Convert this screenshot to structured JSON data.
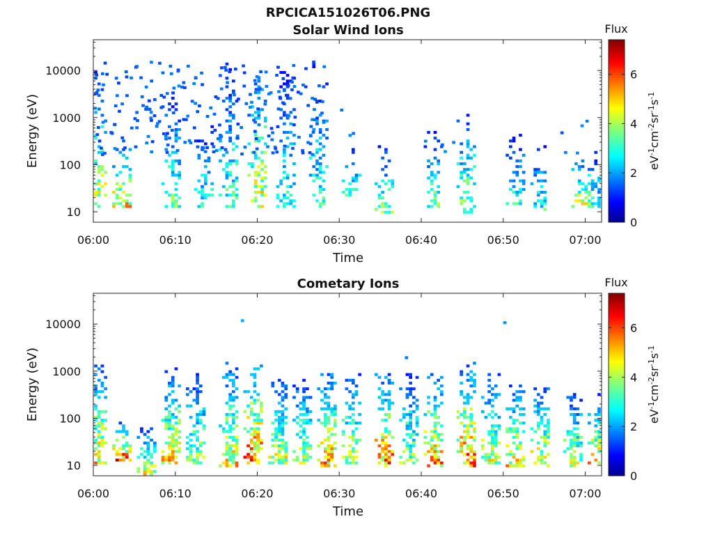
{
  "figure": {
    "title": "RPCICA151026T06.PNG"
  },
  "chart_data": [
    {
      "type": "heatmap",
      "title": "Solar Wind Ions",
      "xlabel": "Time",
      "ylabel": "Energy (eV)",
      "y_scale": "log",
      "ylim": [
        6,
        45000
      ],
      "xlim": [
        "06:00",
        "07:02"
      ],
      "x_ticks": [
        "06:00",
        "06:10",
        "06:20",
        "06:30",
        "06:40",
        "06:50",
        "07:00"
      ],
      "y_ticks": [
        "10",
        "100",
        "1000",
        "10000"
      ],
      "colorbar": {
        "title": "Flux",
        "label": "eV-1cm-2sr-1s-1",
        "range": [
          0,
          7.4
        ],
        "ticks": [
          "0",
          "2",
          "4",
          "6"
        ],
        "colormap": "jet"
      },
      "grid": false,
      "description_segments": [
        {
          "from": "06:00",
          "to": "06:28",
          "energy_range_eV": [
            6,
            15000
          ],
          "typical_flux": [
            2,
            4
          ],
          "note": "scattered high energy pixels"
        },
        {
          "from": "06:28",
          "to": "07:02",
          "energy_range_eV": [
            6,
            1300
          ],
          "typical_flux": [
            2,
            4.5
          ],
          "note": "sparse vertical bursts"
        }
      ],
      "bursts": [
        {
          "t": 0.5,
          "emin": 12,
          "emax": 9000,
          "peak": 5.0
        },
        {
          "t": 3.5,
          "emin": 12,
          "emax": 300,
          "peak": 5.5
        },
        {
          "t": 9.5,
          "emin": 12,
          "emax": 3000,
          "peak": 4.0
        },
        {
          "t": 13.5,
          "emin": 12,
          "emax": 600,
          "peak": 3.5
        },
        {
          "t": 16.5,
          "emin": 12,
          "emax": 14000,
          "peak": 3.8
        },
        {
          "t": 20.0,
          "emin": 12,
          "emax": 12000,
          "peak": 5.2
        },
        {
          "t": 23.5,
          "emin": 12,
          "emax": 9000,
          "peak": 3.5
        },
        {
          "t": 27.5,
          "emin": 12,
          "emax": 15000,
          "peak": 3.5
        },
        {
          "t": 31.5,
          "emin": 20,
          "emax": 250,
          "peak": 3.5
        },
        {
          "t": 35.5,
          "emin": 8,
          "emax": 250,
          "peak": 4.2
        },
        {
          "t": 41.5,
          "emin": 12,
          "emax": 500,
          "peak": 4.0
        },
        {
          "t": 45.5,
          "emin": 8,
          "emax": 1300,
          "peak": 4.5
        },
        {
          "t": 51.5,
          "emin": 12,
          "emax": 400,
          "peak": 3.5
        },
        {
          "t": 54.5,
          "emin": 10,
          "emax": 300,
          "peak": 3.5
        },
        {
          "t": 59.5,
          "emin": 12,
          "emax": 200,
          "peak": 4.8
        },
        {
          "t": 61.5,
          "emin": 12,
          "emax": 220,
          "peak": 3.5
        }
      ]
    },
    {
      "type": "heatmap",
      "title": "Cometary Ions",
      "xlabel": "Time",
      "ylabel": "Energy (eV)",
      "y_scale": "log",
      "ylim": [
        6,
        45000
      ],
      "xlim": [
        "06:00",
        "07:02"
      ],
      "x_ticks": [
        "06:00",
        "06:10",
        "06:20",
        "06:30",
        "06:40",
        "06:50",
        "07:00"
      ],
      "y_ticks": [
        "10",
        "100",
        "1000",
        "10000"
      ],
      "colorbar": {
        "title": "Flux",
        "label": "eV-1cm-2sr-1s-1",
        "range": [
          0,
          7.4
        ],
        "ticks": [
          "0",
          "2",
          "4",
          "6"
        ],
        "colormap": "jet"
      },
      "grid": false,
      "bursts": [
        {
          "t": 0.5,
          "emin": 10,
          "emax": 1300,
          "peak": 5.5
        },
        {
          "t": 3.5,
          "emin": 12,
          "emax": 80,
          "peak": 6.5
        },
        {
          "t": 6.5,
          "emin": 6,
          "emax": 60,
          "peak": 5.0
        },
        {
          "t": 9.5,
          "emin": 10,
          "emax": 1100,
          "peak": 5.5
        },
        {
          "t": 12.5,
          "emin": 10,
          "emax": 900,
          "peak": 4.5
        },
        {
          "t": 16.5,
          "emin": 8,
          "emax": 1500,
          "peak": 5.5
        },
        {
          "t": 19.5,
          "emin": 10,
          "emax": 1800,
          "peak": 6.5
        },
        {
          "t": 22.5,
          "emin": 10,
          "emax": 600,
          "peak": 5.0
        },
        {
          "t": 25.5,
          "emin": 10,
          "emax": 650,
          "peak": 5.0
        },
        {
          "t": 28.5,
          "emin": 8,
          "emax": 1000,
          "peak": 6.0
        },
        {
          "t": 31.5,
          "emin": 10,
          "emax": 900,
          "peak": 5.0
        },
        {
          "t": 35.5,
          "emin": 8,
          "emax": 800,
          "peak": 6.5
        },
        {
          "t": 38.5,
          "emin": 10,
          "emax": 800,
          "peak": 4.5
        },
        {
          "t": 41.5,
          "emin": 8,
          "emax": 1000,
          "peak": 6.0
        },
        {
          "t": 45.5,
          "emin": 8,
          "emax": 1400,
          "peak": 6.5
        },
        {
          "t": 48.5,
          "emin": 10,
          "emax": 800,
          "peak": 5.0
        },
        {
          "t": 51.5,
          "emin": 8,
          "emax": 500,
          "peak": 5.5
        },
        {
          "t": 54.5,
          "emin": 8,
          "emax": 500,
          "peak": 5.5
        },
        {
          "t": 58.5,
          "emin": 8,
          "emax": 300,
          "peak": 5.0
        },
        {
          "t": 61.5,
          "emin": 10,
          "emax": 350,
          "peak": 5.5
        }
      ],
      "isolated_points": [
        {
          "t": 18.0,
          "e": 11000,
          "v": 2.2
        },
        {
          "t": 50.0,
          "e": 10000,
          "v": 2.0
        },
        {
          "t": 38.0,
          "e": 1800,
          "v": 1.8
        }
      ]
    }
  ]
}
